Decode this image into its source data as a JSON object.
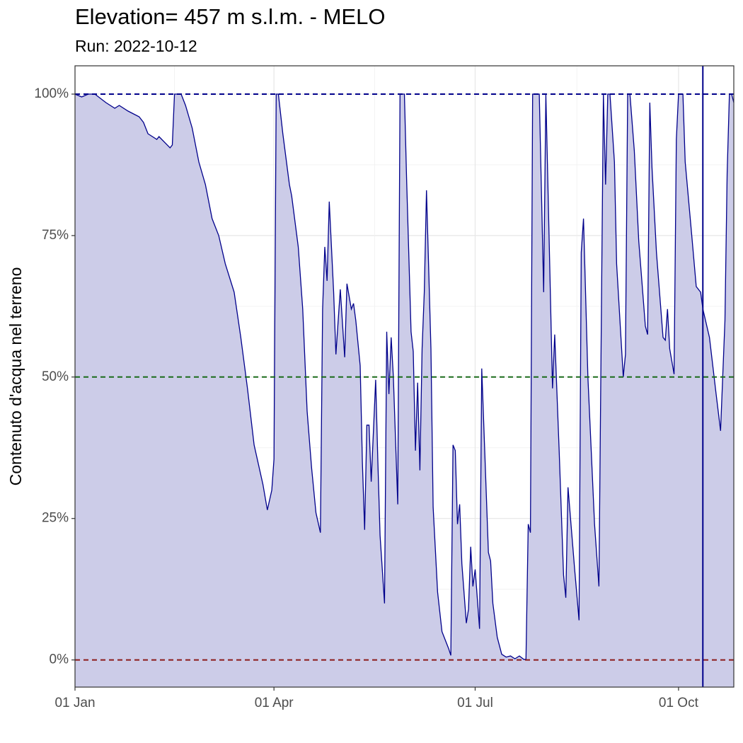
{
  "chart_data": {
    "type": "area",
    "title": "Elevation= 457 m s.l.m. - MELO",
    "subtitle": "Run: 2022-10-12",
    "y_label": "Contenuto d'acqua nel terreno",
    "color": "#00008b",
    "fill": "#cccce8",
    "x": [
      "01-01",
      "01-04",
      "01-07",
      "01-10",
      "01-15",
      "01-19",
      "01-21",
      "01-25",
      "01-30",
      "02-01",
      "02-03",
      "02-07",
      "02-08",
      "02-13",
      "02-14",
      "02-15",
      "02-18",
      "02-20",
      "02-23",
      "02-26",
      "03-01",
      "03-04",
      "03-07",
      "03-10",
      "03-14",
      "03-17",
      "03-20",
      "03-23",
      "03-27",
      "03-29",
      "03-31",
      "04-01",
      "04-02",
      "04-03",
      "04-05",
      "04-08",
      "04-09",
      "04-12",
      "04-14",
      "04-16",
      "04-18",
      "04-20",
      "04-22",
      "04-23",
      "04-24",
      "04-25",
      "04-26",
      "04-28",
      "04-29",
      "05-01",
      "05-03",
      "05-04",
      "05-06",
      "05-07",
      "05-08",
      "05-10",
      "05-11",
      "05-12",
      "05-13",
      "05-14",
      "05-15",
      "05-17",
      "05-18",
      "05-19",
      "05-21",
      "05-22",
      "05-23",
      "05-24",
      "05-25",
      "05-27",
      "05-28",
      "05-30",
      "05-31",
      "06-02",
      "06-03",
      "06-04",
      "06-05",
      "06-06",
      "06-07",
      "06-08",
      "06-09",
      "06-11",
      "06-12",
      "06-14",
      "06-16",
      "06-19",
      "06-20",
      "06-21",
      "06-22",
      "06-23",
      "06-24",
      "06-25",
      "06-27",
      "06-28",
      "06-29",
      "06-30",
      "07-01",
      "07-03",
      "07-04",
      "07-07",
      "07-08",
      "07-09",
      "07-11",
      "07-13",
      "07-15",
      "07-17",
      "07-19",
      "07-21",
      "07-23",
      "07-24",
      "07-25",
      "07-26",
      "07-27",
      "07-30",
      "08-01",
      "08-02",
      "08-05",
      "08-06",
      "08-08",
      "08-10",
      "08-11",
      "08-12",
      "08-15",
      "08-17",
      "08-18",
      "08-19",
      "08-21",
      "08-24",
      "08-26",
      "08-28",
      "08-29",
      "08-30",
      "08-31",
      "09-02",
      "09-03",
      "09-06",
      "09-07",
      "09-08",
      "09-09",
      "09-11",
      "09-13",
      "09-16",
      "09-17",
      "09-18",
      "09-19",
      "09-21",
      "09-24",
      "09-25",
      "09-26",
      "09-27",
      "09-29",
      "09-30",
      "10-01",
      "10-03",
      "10-04",
      "10-07",
      "10-09",
      "10-11",
      "10-12",
      "10-15",
      "10-18",
      "10-20",
      "10-22",
      "10-23",
      "10-24",
      "10-25",
      "10-26"
    ],
    "values": [
      100,
      99.5,
      100,
      100,
      98.5,
      97.5,
      98,
      97,
      96,
      95,
      93,
      92,
      92.5,
      90.5,
      91,
      100,
      100,
      98,
      94,
      88,
      84,
      78,
      75,
      70,
      65,
      57,
      48,
      38,
      31,
      26.5,
      30,
      35.5,
      100,
      100,
      93,
      84,
      82,
      73,
      62,
      44,
      34,
      26,
      22.5,
      62,
      73,
      67,
      81,
      65,
      54,
      65.5,
      53.5,
      66.5,
      62,
      63,
      60,
      52,
      35,
      23,
      41.5,
      41.5,
      31.5,
      49.5,
      35,
      22,
      10,
      58,
      47,
      57,
      50,
      27.5,
      100,
      100,
      85,
      58,
      54.5,
      37,
      49,
      33.5,
      55,
      65,
      83,
      55,
      27,
      12,
      5,
      2,
      0.8,
      38,
      37,
      24,
      27.5,
      17,
      6.5,
      9,
      20,
      13,
      16,
      5.5,
      51.5,
      19,
      17.5,
      10,
      4,
      1,
      0.5,
      0.7,
      0.2,
      0.7,
      0.1,
      0.1,
      24,
      22.5,
      100,
      100,
      65,
      100,
      48,
      57.5,
      37,
      15,
      11,
      30.5,
      16,
      7,
      72,
      78,
      50,
      24,
      13,
      100,
      84,
      100,
      100,
      88,
      70,
      50,
      54,
      100,
      100,
      90,
      74,
      59,
      57.5,
      98.5,
      87,
      72,
      57,
      56.5,
      62,
      55,
      50.5,
      92,
      100,
      100,
      88,
      75,
      66,
      65,
      62,
      57,
      47,
      40.5,
      60,
      86,
      100,
      100,
      98.5
    ],
    "xlim": [
      "01-01",
      "10-26"
    ],
    "xticks": [
      {
        "value": "01-01",
        "label": "01 Jan"
      },
      {
        "value": "04-01",
        "label": "01 Apr"
      },
      {
        "value": "07-01",
        "label": "01 Jul"
      },
      {
        "value": "10-01",
        "label": "01 Oct"
      }
    ],
    "ylim": [
      -4.8,
      105
    ],
    "yticks": [
      {
        "value": 0,
        "label": "0%"
      },
      {
        "value": 25,
        "label": "25%"
      },
      {
        "value": 50,
        "label": "50%"
      },
      {
        "value": 75,
        "label": "75%"
      },
      {
        "value": 100,
        "label": "100%"
      }
    ],
    "grid": true,
    "hlines": [
      {
        "value": 100,
        "color": "#00008b"
      },
      {
        "value": 50,
        "color": "#1a6b1a"
      },
      {
        "value": 0,
        "color": "#8b1a1a"
      }
    ],
    "vline": {
      "x": "10-12",
      "color": "#00008b"
    }
  }
}
